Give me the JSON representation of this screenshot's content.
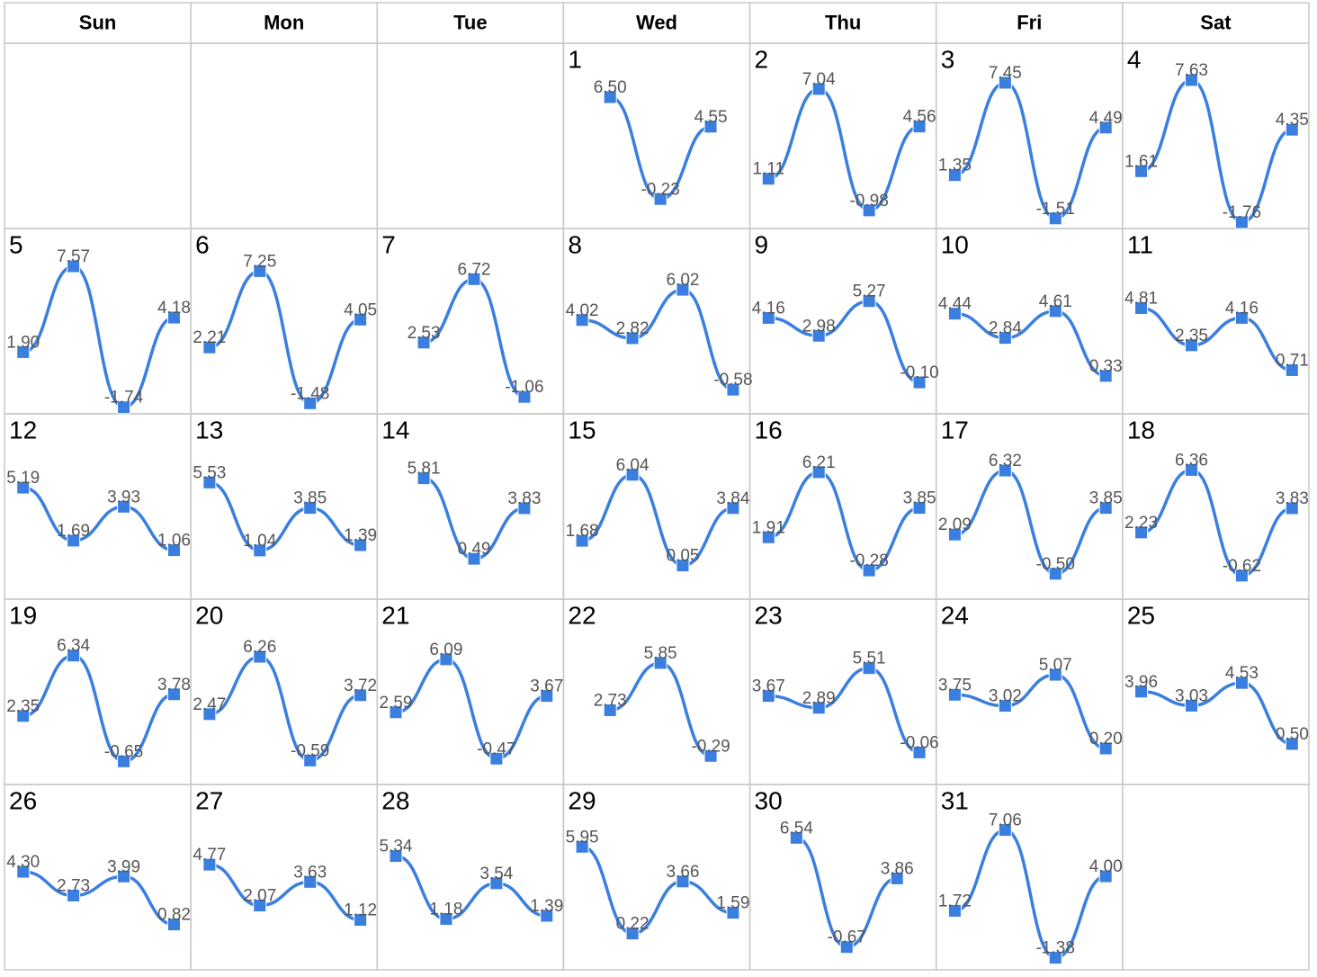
{
  "weekdays": [
    "Sun",
    "Mon",
    "Tue",
    "Wed",
    "Thu",
    "Fri",
    "Sat"
  ],
  "chart_data": [
    {
      "type": "line",
      "title": "1",
      "color": "#3a7fe0",
      "values": [
        6.5,
        -0.23,
        4.55
      ],
      "value_labels": [
        "6.50",
        "-0.23",
        "4.55"
      ]
    },
    {
      "type": "line",
      "title": "2",
      "color": "#3a7fe0",
      "values": [
        1.11,
        7.04,
        -0.98,
        4.56
      ],
      "value_labels": [
        "1.11",
        "7.04",
        "-0.98",
        "4.56"
      ]
    },
    {
      "type": "line",
      "title": "3",
      "color": "#3a7fe0",
      "values": [
        1.35,
        7.45,
        -1.51,
        4.49
      ],
      "value_labels": [
        "1.35",
        "7.45",
        "-1.51",
        "4.49"
      ]
    },
    {
      "type": "line",
      "title": "4",
      "color": "#3a7fe0",
      "values": [
        1.61,
        7.63,
        -1.76,
        4.35
      ],
      "value_labels": [
        "1.61",
        "7.63",
        "-1.76",
        "4.35"
      ]
    },
    {
      "type": "line",
      "title": "5",
      "color": "#3a7fe0",
      "values": [
        1.9,
        7.57,
        -1.74,
        4.18
      ],
      "value_labels": [
        "1.90",
        "7.57",
        "-1.74",
        "4.18"
      ]
    },
    {
      "type": "line",
      "title": "6",
      "color": "#3a7fe0",
      "values": [
        2.21,
        7.25,
        -1.48,
        4.05
      ],
      "value_labels": [
        "2.21",
        "7.25",
        "-1.48",
        "4.05"
      ]
    },
    {
      "type": "line",
      "title": "7",
      "color": "#3a7fe0",
      "values": [
        2.53,
        6.72,
        -1.06
      ],
      "value_labels": [
        "2.53",
        "6.72",
        "-1.06"
      ]
    },
    {
      "type": "line",
      "title": "8",
      "color": "#3a7fe0",
      "values": [
        4.02,
        2.82,
        6.02,
        -0.58
      ],
      "value_labels": [
        "4.02",
        "2.82",
        "6.02",
        "-0.58"
      ]
    },
    {
      "type": "line",
      "title": "9",
      "color": "#3a7fe0",
      "values": [
        4.16,
        2.98,
        5.27,
        -0.1
      ],
      "value_labels": [
        "4.16",
        "2.98",
        "5.27",
        "-0.10"
      ]
    },
    {
      "type": "line",
      "title": "10",
      "color": "#3a7fe0",
      "values": [
        4.44,
        2.84,
        4.61,
        0.33
      ],
      "value_labels": [
        "4.44",
        "2.84",
        "4.61",
        "0.33"
      ]
    },
    {
      "type": "line",
      "title": "11",
      "color": "#3a7fe0",
      "values": [
        4.81,
        2.35,
        4.16,
        0.71
      ],
      "value_labels": [
        "4.81",
        "2.35",
        "4.16",
        "0.71"
      ]
    },
    {
      "type": "line",
      "title": "12",
      "color": "#3a7fe0",
      "values": [
        5.19,
        1.69,
        3.93,
        1.06
      ],
      "value_labels": [
        "5.19",
        "1.69",
        "3.93",
        "1.06"
      ]
    },
    {
      "type": "line",
      "title": "13",
      "color": "#3a7fe0",
      "values": [
        5.53,
        1.04,
        3.85,
        1.39
      ],
      "value_labels": [
        "5.53",
        "1.04",
        "3.85",
        "1.39"
      ]
    },
    {
      "type": "line",
      "title": "14",
      "color": "#3a7fe0",
      "values": [
        5.81,
        0.49,
        3.83
      ],
      "value_labels": [
        "5.81",
        "0.49",
        "3.83"
      ]
    },
    {
      "type": "line",
      "title": "15",
      "color": "#3a7fe0",
      "values": [
        1.68,
        6.04,
        0.05,
        3.84
      ],
      "value_labels": [
        "1.68",
        "6.04",
        "0.05",
        "3.84"
      ]
    },
    {
      "type": "line",
      "title": "16",
      "color": "#3a7fe0",
      "values": [
        1.91,
        6.21,
        -0.28,
        3.85
      ],
      "value_labels": [
        "1.91",
        "6.21",
        "-0.28",
        "3.85"
      ]
    },
    {
      "type": "line",
      "title": "17",
      "color": "#3a7fe0",
      "values": [
        2.09,
        6.32,
        -0.5,
        3.85
      ],
      "value_labels": [
        "2.09",
        "6.32",
        "-0.50",
        "3.85"
      ]
    },
    {
      "type": "line",
      "title": "18",
      "color": "#3a7fe0",
      "values": [
        2.23,
        6.36,
        -0.62,
        3.83
      ],
      "value_labels": [
        "2.23",
        "6.36",
        "-0.62",
        "3.83"
      ]
    },
    {
      "type": "line",
      "title": "19",
      "color": "#3a7fe0",
      "values": [
        2.35,
        6.34,
        -0.65,
        3.78
      ],
      "value_labels": [
        "2.35",
        "6.34",
        "-0.65",
        "3.78"
      ]
    },
    {
      "type": "line",
      "title": "20",
      "color": "#3a7fe0",
      "values": [
        2.47,
        6.26,
        -0.59,
        3.72
      ],
      "value_labels": [
        "2.47",
        "6.26",
        "-0.59",
        "3.72"
      ]
    },
    {
      "type": "line",
      "title": "21",
      "color": "#3a7fe0",
      "values": [
        2.59,
        6.09,
        -0.47,
        3.67
      ],
      "value_labels": [
        "2.59",
        "6.09",
        "-0.47",
        "3.67"
      ]
    },
    {
      "type": "line",
      "title": "22",
      "color": "#3a7fe0",
      "values": [
        2.73,
        5.85,
        -0.29
      ],
      "value_labels": [
        "2.73",
        "5.85",
        "-0.29"
      ]
    },
    {
      "type": "line",
      "title": "23",
      "color": "#3a7fe0",
      "values": [
        3.67,
        2.89,
        5.51,
        -0.06
      ],
      "value_labels": [
        "3.67",
        "2.89",
        "5.51",
        "-0.06"
      ]
    },
    {
      "type": "line",
      "title": "24",
      "color": "#3a7fe0",
      "values": [
        3.75,
        3.02,
        5.07,
        0.2
      ],
      "value_labels": [
        "3.75",
        "3.02",
        "5.07",
        "0.20"
      ]
    },
    {
      "type": "line",
      "title": "25",
      "color": "#3a7fe0",
      "values": [
        3.96,
        3.03,
        4.53,
        0.5
      ],
      "value_labels": [
        "3.96",
        "3.03",
        "4.53",
        "0.50"
      ]
    },
    {
      "type": "line",
      "title": "26",
      "color": "#3a7fe0",
      "values": [
        4.3,
        2.73,
        3.99,
        0.82
      ],
      "value_labels": [
        "4.30",
        "2.73",
        "3.99",
        "0.82"
      ]
    },
    {
      "type": "line",
      "title": "27",
      "color": "#3a7fe0",
      "values": [
        4.77,
        2.07,
        3.63,
        1.12
      ],
      "value_labels": [
        "4.77",
        "2.07",
        "3.63",
        "1.12"
      ]
    },
    {
      "type": "line",
      "title": "28",
      "color": "#3a7fe0",
      "values": [
        5.34,
        1.18,
        3.54,
        1.39
      ],
      "value_labels": [
        "5.34",
        "1.18",
        "3.54",
        "1.39"
      ]
    },
    {
      "type": "line",
      "title": "29",
      "color": "#3a7fe0",
      "values": [
        5.95,
        0.22,
        3.66,
        1.59
      ],
      "value_labels": [
        "5.95",
        "0.22",
        "3.66",
        "1.59"
      ]
    },
    {
      "type": "line",
      "title": "30",
      "color": "#3a7fe0",
      "values": [
        6.54,
        -0.67,
        3.86
      ],
      "value_labels": [
        "6.54",
        "-0.67",
        "3.86"
      ]
    },
    {
      "type": "line",
      "title": "31",
      "color": "#3a7fe0",
      "values": [
        1.72,
        7.06,
        -1.38,
        4.0
      ],
      "value_labels": [
        "1.72",
        "7.06",
        "-1.38",
        "4.00"
      ]
    }
  ]
}
